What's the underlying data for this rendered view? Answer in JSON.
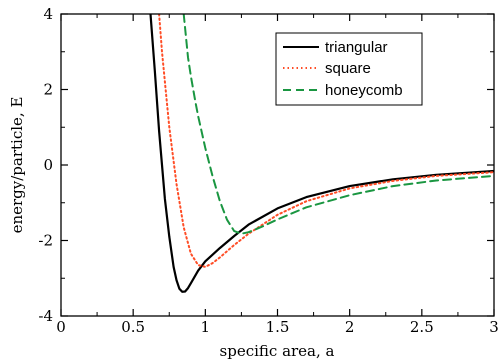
{
  "chart_data": {
    "type": "line",
    "title": "",
    "xlabel": "specific area, a",
    "ylabel": "energy/particle, E",
    "xlim": [
      0,
      3
    ],
    "ylim": [
      -4,
      4
    ],
    "xticks": [
      0,
      0.5,
      1,
      1.5,
      2,
      2.5,
      3
    ],
    "xtick_labels": [
      "0",
      "0.5",
      "1",
      "1.5",
      "2",
      "2.5",
      "3"
    ],
    "yticks": [
      -4,
      -2,
      0,
      2,
      4
    ],
    "ytick_labels": [
      "-4",
      "-2",
      "0",
      "2",
      "4"
    ],
    "grid": false,
    "legend_position": "top-right",
    "series": [
      {
        "name": "triangular",
        "color": "#000000",
        "style": "solid",
        "x": [
          0.62,
          0.65,
          0.68,
          0.7,
          0.72,
          0.75,
          0.78,
          0.8,
          0.82,
          0.84,
          0.86,
          0.88,
          0.9,
          0.95,
          1.0,
          1.1,
          1.2,
          1.3,
          1.5,
          1.7,
          2.0,
          2.3,
          2.6,
          3.0
        ],
        "y": [
          4.0,
          2.5,
          0.9,
          0.0,
          -0.9,
          -1.9,
          -2.7,
          -3.05,
          -3.28,
          -3.36,
          -3.35,
          -3.26,
          -3.13,
          -2.8,
          -2.55,
          -2.2,
          -1.88,
          -1.58,
          -1.15,
          -0.85,
          -0.56,
          -0.38,
          -0.26,
          -0.16
        ]
      },
      {
        "name": "square",
        "color": "#ff4d26",
        "style": "dotted",
        "x": [
          0.68,
          0.7,
          0.72,
          0.75,
          0.8,
          0.85,
          0.9,
          0.95,
          1.0,
          1.05,
          1.1,
          1.2,
          1.3,
          1.5,
          1.7,
          2.0,
          2.3,
          2.6,
          3.0
        ],
        "y": [
          4.0,
          3.0,
          2.2,
          1.0,
          -0.5,
          -1.65,
          -2.35,
          -2.65,
          -2.7,
          -2.6,
          -2.45,
          -2.12,
          -1.82,
          -1.32,
          -0.96,
          -0.62,
          -0.42,
          -0.29,
          -0.19
        ]
      },
      {
        "name": "honeycomb",
        "color": "#1a9641",
        "style": "dashed",
        "x": [
          0.85,
          0.88,
          0.9,
          0.93,
          0.95,
          1.0,
          1.05,
          1.1,
          1.15,
          1.2,
          1.25,
          1.3,
          1.4,
          1.5,
          1.7,
          2.0,
          2.3,
          2.6,
          3.0
        ],
        "y": [
          4.0,
          2.85,
          2.35,
          1.7,
          1.3,
          0.45,
          -0.3,
          -0.95,
          -1.45,
          -1.75,
          -1.82,
          -1.78,
          -1.62,
          -1.44,
          -1.12,
          -0.8,
          -0.56,
          -0.41,
          -0.29
        ]
      }
    ]
  }
}
